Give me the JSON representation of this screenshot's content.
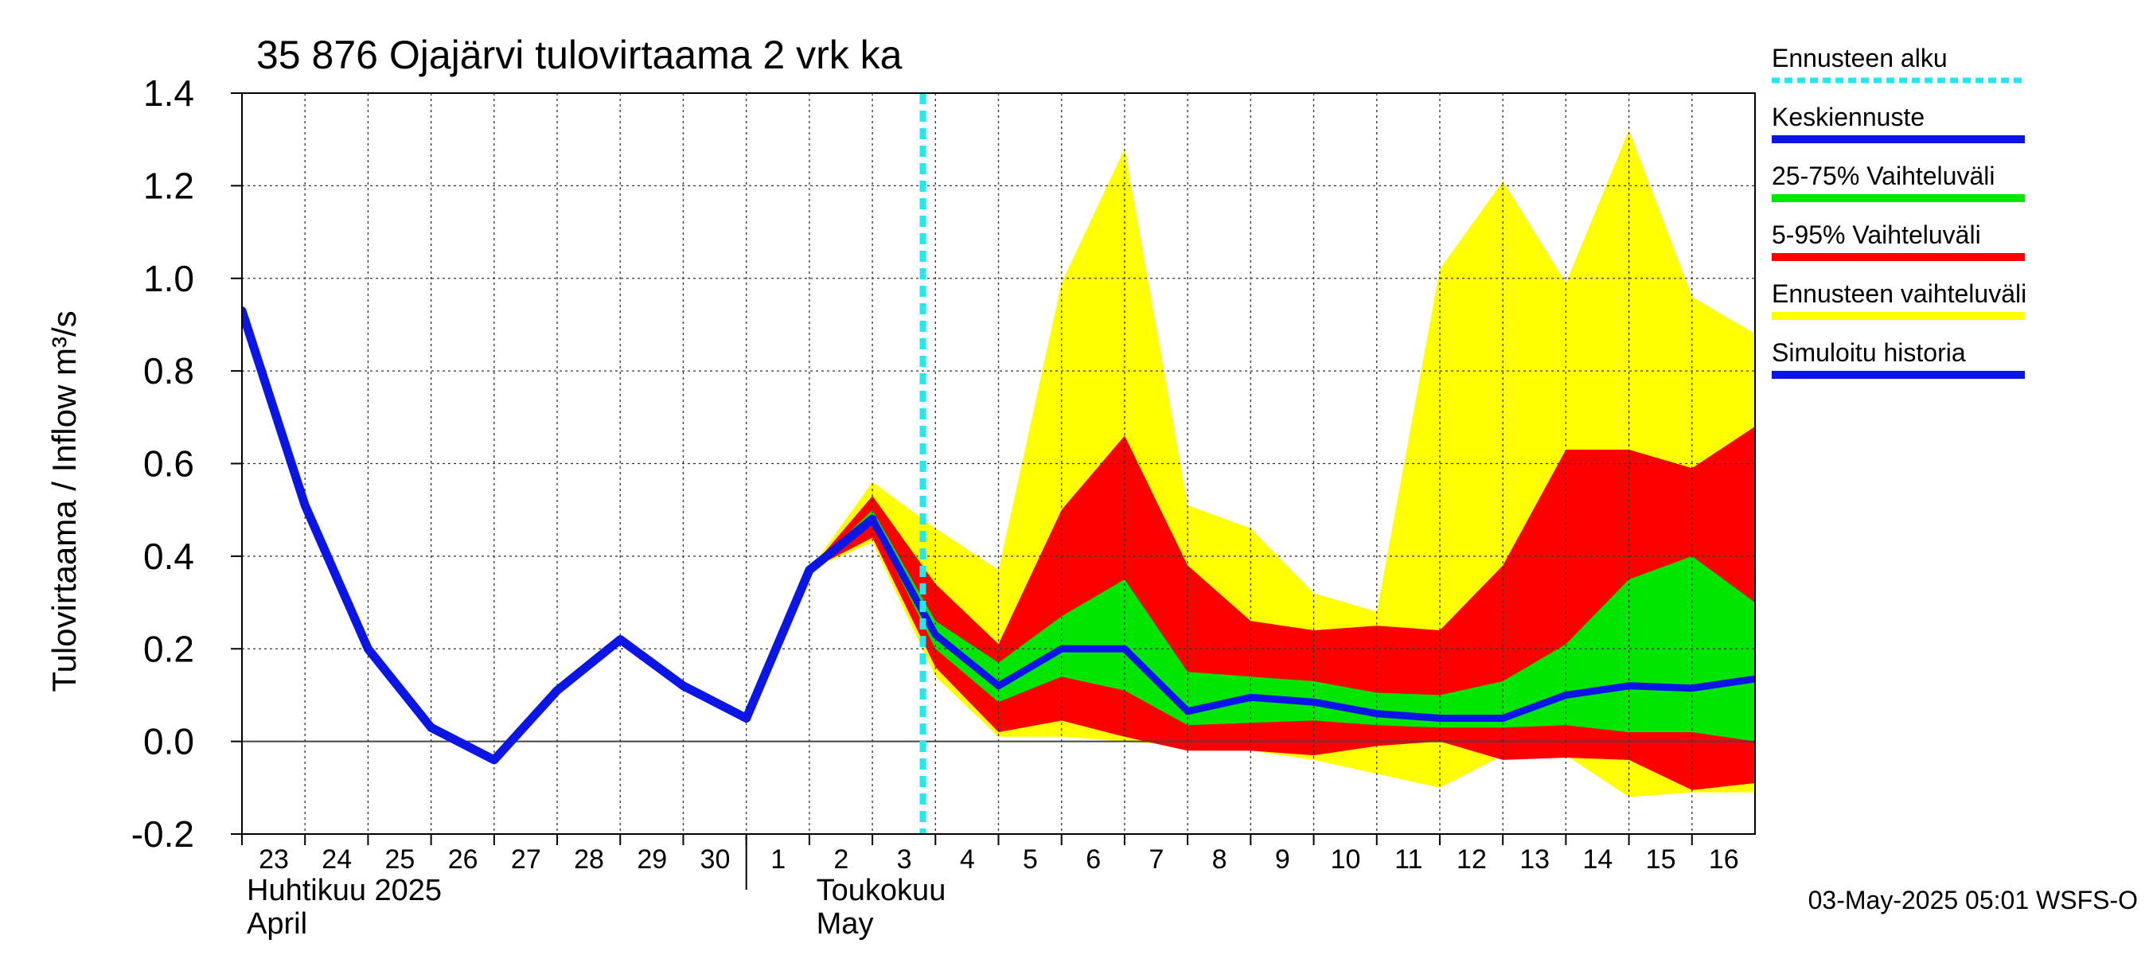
{
  "chart_data": {
    "type": "area",
    "title": "35 876 Ojajärvi tulovirtaama 2 vrk ka",
    "ylabel": "Tulovirtaama / Inflow    m³/s",
    "ylim": [
      -0.2,
      1.4
    ],
    "yticks": [
      "-0.2",
      "0.0",
      "0.2",
      "0.4",
      "0.6",
      "0.8",
      "1.0",
      "1.2",
      "1.4"
    ],
    "x_day_labels": [
      "23",
      "24",
      "25",
      "26",
      "27",
      "28",
      "29",
      "30",
      "1",
      "2",
      "3",
      "4",
      "5",
      "6",
      "7",
      "8",
      "9",
      "10",
      "11",
      "12",
      "13",
      "14",
      "15",
      "16"
    ],
    "month_labels": {
      "april_fi": "Huhtikuu  2025",
      "april_en": "April",
      "may_fi": "Toukokuu",
      "may_en": "May"
    },
    "grid": true,
    "forecast_start_day": 10.8,
    "x_days": [
      0,
      1,
      2,
      3,
      4,
      5,
      6,
      7,
      8,
      9,
      10,
      11,
      12,
      13,
      14,
      15,
      16,
      17,
      18,
      19,
      20,
      21,
      22,
      23,
      24
    ],
    "simulated_history": {
      "name": "Simuloitu historia",
      "values": [
        0.93,
        0.51,
        0.2,
        0.03,
        -0.04,
        0.11,
        0.22,
        0.12,
        0.05,
        0.37,
        0.48
      ]
    },
    "forecast_x": [
      9,
      10,
      11,
      12,
      13,
      14,
      15,
      16,
      17,
      18,
      19,
      20,
      21,
      22,
      23,
      24
    ],
    "forecast_median": {
      "name": "Keskiennuste",
      "values": [
        0.37,
        0.48,
        0.23,
        0.12,
        0.2,
        0.2,
        0.065,
        0.095,
        0.085,
        0.06,
        0.05,
        0.05,
        0.1,
        0.12,
        0.115,
        0.135
      ]
    },
    "band_25_75": {
      "name": "25-75% Vaihteluväli",
      "upper": [
        0.37,
        0.5,
        0.26,
        0.17,
        0.27,
        0.35,
        0.15,
        0.14,
        0.13,
        0.105,
        0.1,
        0.13,
        0.21,
        0.35,
        0.4,
        0.3
      ],
      "lower": [
        0.37,
        0.47,
        0.2,
        0.085,
        0.14,
        0.11,
        0.035,
        0.04,
        0.045,
        0.035,
        0.03,
        0.03,
        0.035,
        0.02,
        0.02,
        0.0
      ]
    },
    "band_5_95": {
      "name": "5-95% Vaihteluväli",
      "upper": [
        0.37,
        0.53,
        0.34,
        0.21,
        0.5,
        0.66,
        0.38,
        0.26,
        0.24,
        0.25,
        0.24,
        0.38,
        0.63,
        0.63,
        0.59,
        0.68
      ],
      "lower": [
        0.37,
        0.44,
        0.16,
        0.02,
        0.045,
        0.01,
        -0.02,
        -0.02,
        -0.03,
        -0.01,
        0.0,
        -0.04,
        -0.035,
        -0.04,
        -0.105,
        -0.09
      ]
    },
    "band_forecast": {
      "name": "Ennusteen vaihteluväli",
      "upper": [
        0.37,
        0.56,
        0.46,
        0.37,
        0.99,
        1.28,
        0.51,
        0.46,
        0.32,
        0.28,
        1.02,
        1.21,
        0.99,
        1.32,
        0.96,
        0.88
      ],
      "lower": [
        0.37,
        0.43,
        0.14,
        0.01,
        0.01,
        0.0,
        -0.01,
        -0.02,
        -0.04,
        -0.07,
        -0.1,
        -0.03,
        -0.03,
        -0.12,
        -0.11,
        -0.11
      ]
    },
    "legend": [
      {
        "label": "Ennusteen alku",
        "color": "#22e8f0",
        "style": "dashed"
      },
      {
        "label": "Keskiennuste",
        "color": "#0b16e6",
        "style": "solid"
      },
      {
        "label": "25-75% Vaihteluväli",
        "color": "#00e600",
        "style": "solid"
      },
      {
        "label": "5-95% Vaihteluväli",
        "color": "#ff0000",
        "style": "solid"
      },
      {
        "label": "Ennusteen vaihteluväli",
        "color": "#ffff00",
        "style": "solid"
      },
      {
        "label": "Simuloitu historia",
        "color": "#0b16e6",
        "style": "solid"
      }
    ],
    "legend_position": "right",
    "colors": {
      "history": "#0b16e6",
      "median": "#0b16e6",
      "band_25_75": "#00e600",
      "band_5_95": "#ff0000",
      "band_forecast": "#ffff00",
      "forecast_start": "#22e8f0"
    }
  },
  "timestamp": "03-May-2025 05:01 WSFS-O"
}
